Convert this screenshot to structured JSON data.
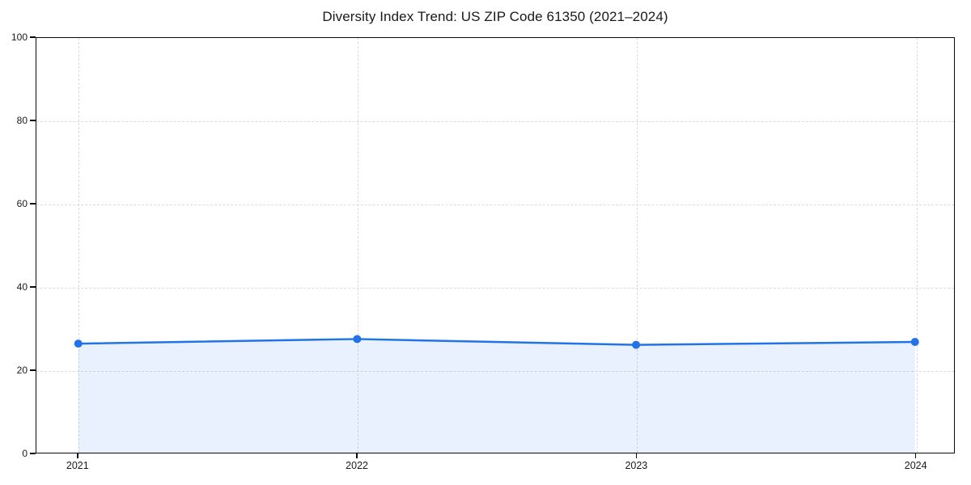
{
  "chart_data": {
    "type": "area",
    "title": "Diversity Index Trend: US ZIP Code 61350 (2021–2024)",
    "x": [
      2021,
      2022,
      2023,
      2024
    ],
    "values": [
      26.3,
      27.4,
      26.0,
      26.7
    ],
    "xticks": [
      "2021",
      "2022",
      "2023",
      "2024"
    ],
    "yticks": [
      0,
      20,
      40,
      60,
      80,
      100
    ],
    "ylim": [
      0,
      100
    ],
    "xlim": [
      2020.85,
      2024.14
    ],
    "xlabel": "",
    "ylabel": "",
    "grid": "dashed",
    "legend": "none",
    "colors": {
      "line": "#2272e8",
      "marker": "#2272e8",
      "fill": "#2272e8",
      "fill_opacity": 0.1,
      "grid": "#dcdcdc",
      "axis": "#0a0a0a",
      "text": "#1a1a1a",
      "background": "#ffffff"
    },
    "marker_radius": 5,
    "line_width": 2.5
  }
}
